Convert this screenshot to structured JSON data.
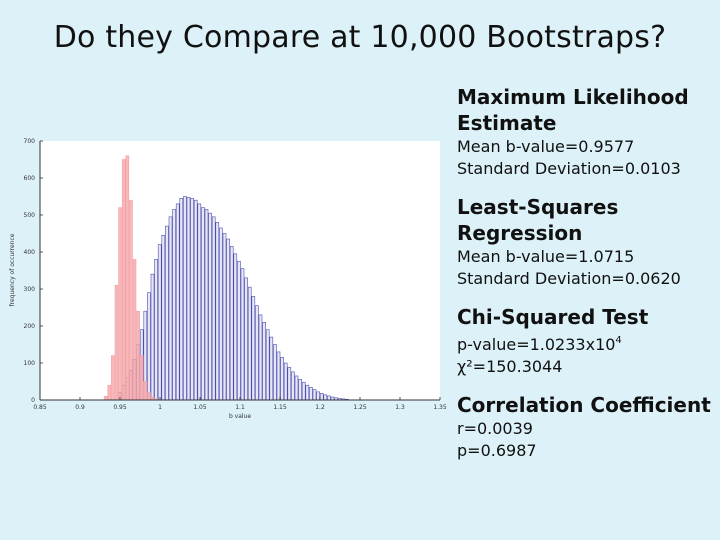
{
  "slide": {
    "title": "Do they Compare at 10,000 Bootstraps?"
  },
  "chart_data": {
    "type": "bar",
    "title": "",
    "xlabel": "b value",
    "ylabel": "frequency of occurrence",
    "xlim": [
      0.85,
      1.35
    ],
    "ylim": [
      0,
      700
    ],
    "xticks": [
      "0.85",
      "0.9",
      "0.95",
      "1",
      "1.05",
      "1.1",
      "1.15",
      "1.2",
      "1.25",
      "1.3",
      "1.35"
    ],
    "yticks": [
      "0",
      "100",
      "200",
      "300",
      "400",
      "500",
      "600",
      "700"
    ],
    "bin_width": 0.0045,
    "series": [
      {
        "name": "Maximum Likelihood Estimate",
        "color": "#f4a0a4",
        "x": [
          0.9325,
          0.937,
          0.9415,
          0.946,
          0.9505,
          0.955,
          0.9595,
          0.964,
          0.9685,
          0.973,
          0.9775,
          0.982,
          0.9865,
          0.991,
          0.9955
        ],
        "values": [
          10,
          40,
          120,
          310,
          520,
          650,
          660,
          540,
          380,
          240,
          120,
          50,
          20,
          8,
          3
        ]
      },
      {
        "name": "Least-Squares Regression",
        "color": "#3a3aa8",
        "x": [
          0.9505,
          0.955,
          0.9595,
          0.964,
          0.9685,
          0.973,
          0.9775,
          0.982,
          0.9865,
          0.991,
          0.9955,
          1.0,
          1.0045,
          1.009,
          1.0135,
          1.018,
          1.0225,
          1.027,
          1.0315,
          1.036,
          1.0405,
          1.045,
          1.0495,
          1.054,
          1.0585,
          1.063,
          1.0675,
          1.072,
          1.0765,
          1.081,
          1.0855,
          1.09,
          1.0945,
          1.099,
          1.1035,
          1.108,
          1.1125,
          1.117,
          1.1215,
          1.126,
          1.1305,
          1.135,
          1.1395,
          1.144,
          1.1485,
          1.153,
          1.1575,
          1.162,
          1.1665,
          1.171,
          1.1755,
          1.18,
          1.1845,
          1.189,
          1.1935,
          1.198,
          1.2025,
          1.207,
          1.2115,
          1.216,
          1.2205,
          1.225,
          1.2295,
          1.234
        ],
        "values": [
          20,
          40,
          60,
          80,
          110,
          150,
          190,
          240,
          290,
          340,
          380,
          420,
          445,
          470,
          495,
          515,
          530,
          545,
          550,
          548,
          545,
          540,
          530,
          520,
          515,
          505,
          495,
          480,
          465,
          450,
          435,
          415,
          395,
          375,
          355,
          330,
          305,
          280,
          255,
          230,
          210,
          190,
          170,
          150,
          130,
          115,
          100,
          88,
          76,
          65,
          56,
          48,
          40,
          34,
          28,
          22,
          18,
          14,
          11,
          8,
          6,
          4,
          3,
          2
        ]
      }
    ]
  },
  "panel": {
    "mle": {
      "heading": "Maximum Likelihood Estimate",
      "line1": "Mean b-value=0.9577",
      "line2": "Standard Deviation=0.0103"
    },
    "lsr": {
      "heading": "Least-Squares Regression",
      "line1": "Mean b-value=1.0715",
      "line2": "Standard Deviation=0.0620"
    },
    "chi": {
      "heading": "Chi-Squared Test",
      "pvalue_prefix": "p-value=1.0233x10",
      "pvalue_exp": "4",
      "line2": "χ²=150.3044"
    },
    "corr": {
      "heading": "Correlation Coefficient",
      "line1": "r=0.0039",
      "line2": "p=0.6987"
    }
  }
}
